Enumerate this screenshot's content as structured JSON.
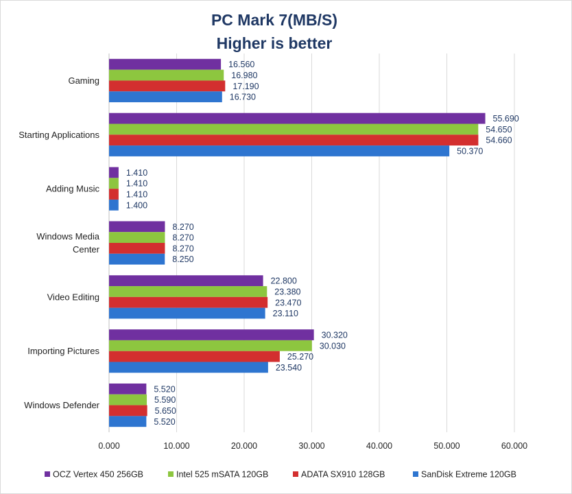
{
  "chart_data": {
    "type": "bar",
    "orientation": "horizontal",
    "title": [
      "PC Mark 7(MB/S)",
      "Higher is better"
    ],
    "categories": [
      "Gaming",
      "Starting Applications",
      "Adding Music",
      "Windows Media Center",
      "Video Editing",
      "Importing Pictures",
      "Windows Defender"
    ],
    "category_labels": [
      [
        "Gaming"
      ],
      [
        "Starting Applications"
      ],
      [
        "Adding Music"
      ],
      [
        "Windows Media",
        "Center"
      ],
      [
        "Video Editing"
      ],
      [
        "Importing Pictures"
      ],
      [
        "Windows Defender"
      ]
    ],
    "series": [
      {
        "name": "OCZ Vertex 450 256GB",
        "color": "#7030a0",
        "values": [
          16.56,
          55.69,
          1.41,
          8.27,
          22.8,
          30.32,
          5.52
        ]
      },
      {
        "name": "Intel 525 mSATA 120GB",
        "color": "#8dc63f",
        "values": [
          16.98,
          54.65,
          1.41,
          8.27,
          23.38,
          30.03,
          5.59
        ]
      },
      {
        "name": "ADATA SX910 128GB",
        "color": "#d32f2f",
        "values": [
          17.19,
          54.66,
          1.41,
          8.27,
          23.47,
          25.27,
          5.65
        ]
      },
      {
        "name": "SanDisk Extreme 120GB",
        "color": "#2e75d0",
        "values": [
          16.73,
          50.37,
          1.4,
          8.25,
          23.11,
          23.54,
          5.52
        ]
      }
    ],
    "xlim": [
      0,
      60
    ],
    "xticks": [
      0,
      10,
      20,
      30,
      40,
      50,
      60
    ],
    "xtick_labels": [
      "0.000",
      "10.000",
      "20.000",
      "30.000",
      "40.000",
      "50.000",
      "60.000"
    ],
    "grid": true,
    "legend_position": "bottom",
    "data_labels": true,
    "value_format_decimals": 3
  }
}
